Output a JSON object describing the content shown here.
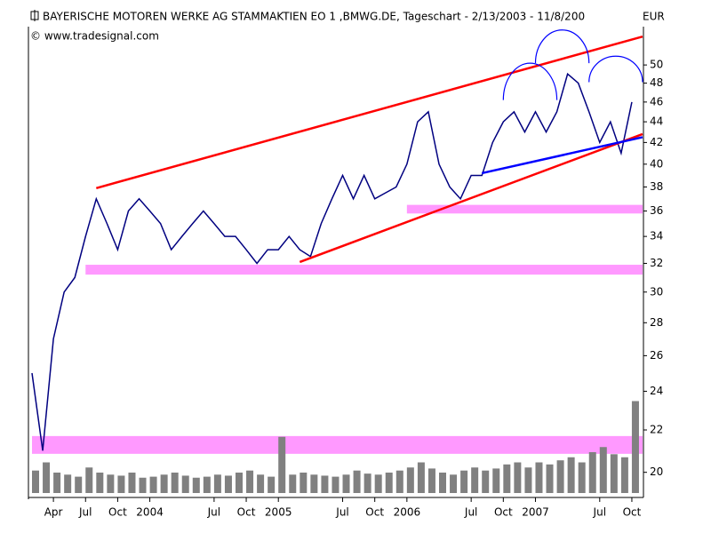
{
  "chart_data": {
    "type": "line",
    "title": "BAYERISCHE MOTOREN WERKE AG STAMMAKTIEN EO 1 ,BMWG.DE, Tageschart - 2/13/2003 - 11/8/200",
    "currency": "EUR",
    "subtitle": "© www.tradesignal.com",
    "log_scale": true,
    "x": [
      "2003-02",
      "2003-03",
      "2003-04",
      "2003-05",
      "2003-06",
      "2003-07",
      "2003-08",
      "2003-09",
      "2003-10",
      "2003-11",
      "2003-12",
      "2004-01",
      "2004-02",
      "2004-03",
      "2004-04",
      "2004-05",
      "2004-06",
      "2004-07",
      "2004-08",
      "2004-09",
      "2004-10",
      "2004-11",
      "2004-12",
      "2005-01",
      "2005-02",
      "2005-03",
      "2005-04",
      "2005-05",
      "2005-06",
      "2005-07",
      "2005-08",
      "2005-09",
      "2005-10",
      "2005-11",
      "2005-12",
      "2006-01",
      "2006-02",
      "2006-03",
      "2006-04",
      "2006-05",
      "2006-06",
      "2006-07",
      "2006-08",
      "2006-09",
      "2006-10",
      "2006-11",
      "2006-12",
      "2007-01",
      "2007-02",
      "2007-03",
      "2007-04",
      "2007-05",
      "2007-06",
      "2007-07",
      "2007-08",
      "2007-09",
      "2007-10"
    ],
    "series": [
      {
        "color": "#000080",
        "values": [
          25,
          21,
          27,
          30,
          31,
          34,
          37,
          35,
          33,
          36,
          37,
          36,
          35,
          33,
          34,
          35,
          36,
          35,
          34,
          34,
          33,
          32,
          33,
          33,
          34,
          33,
          32.5,
          35,
          37,
          39,
          37,
          39,
          37,
          37.5,
          38,
          40,
          44,
          45,
          40,
          38,
          37,
          39,
          39,
          42,
          44,
          45,
          43,
          45,
          43,
          45,
          49,
          48,
          45,
          42,
          44,
          41,
          46
        ]
      },
      {
        "color": "#808080",
        "axis": "y2",
        "type": "bar",
        "values": [
          22,
          30,
          20,
          18,
          16,
          25,
          20,
          18,
          17,
          20,
          15,
          16,
          18,
          20,
          17,
          15,
          16,
          18,
          17,
          20,
          22,
          18,
          16,
          55,
          18,
          20,
          18,
          17,
          16,
          18,
          22,
          19,
          18,
          20,
          22,
          25,
          30,
          24,
          20,
          18,
          22,
          25,
          22,
          24,
          28,
          30,
          25,
          30,
          28,
          32,
          35,
          30,
          40,
          45,
          38,
          35,
          90
        ]
      }
    ],
    "xlim": [
      "2003-02",
      "2007-11"
    ],
    "xticks": [
      {
        "value": "2003-04",
        "label": "Apr"
      },
      {
        "value": "2003-07",
        "label": "Jul"
      },
      {
        "value": "2003-10",
        "label": "Oct"
      },
      {
        "value": "2004-01",
        "label": "2004"
      },
      {
        "value": "2004-07",
        "label": "Jul"
      },
      {
        "value": "2004-10",
        "label": "Oct"
      },
      {
        "value": "2005-01",
        "label": "2005"
      },
      {
        "value": "2005-07",
        "label": "Jul"
      },
      {
        "value": "2005-10",
        "label": "Oct"
      },
      {
        "value": "2006-01",
        "label": "2006"
      },
      {
        "value": "2006-07",
        "label": "Jul"
      },
      {
        "value": "2006-10",
        "label": "Oct"
      },
      {
        "value": "2007-01",
        "label": "2007"
      },
      {
        "value": "2007-07",
        "label": "Jul"
      },
      {
        "value": "2007-10",
        "label": "Oct"
      }
    ],
    "ylim": [
      18.9,
      54.5
    ],
    "yticks": [
      20,
      22,
      24,
      26,
      28,
      30,
      32,
      34,
      36,
      38,
      40,
      42,
      44,
      46,
      48,
      50
    ],
    "y2lim": [
      0,
      100
    ],
    "bands": [
      {
        "color": "#ff99ff",
        "x": [
          "2003-07",
          "2007-11"
        ],
        "y": [
          31.2,
          31.9
        ]
      },
      {
        "color": "#ff99ff",
        "x": [
          "2006-01",
          "2007-11"
        ],
        "y": [
          35.8,
          36.5
        ]
      },
      {
        "color": "#ff99ff",
        "x": [
          "2003-02",
          "2007-11"
        ],
        "y": [
          20.85,
          21.7
        ]
      }
    ],
    "trendlines": [
      {
        "color": "#ff0000",
        "x": [
          "2003-08",
          "2007-11"
        ],
        "y": [
          37.9,
          53.3
        ]
      },
      {
        "color": "#ff0000",
        "x": [
          "2005-03",
          "2007-11"
        ],
        "y": [
          32.1,
          42.8
        ]
      },
      {
        "color": "#0000ff",
        "x": [
          "2006-08",
          "2007-11"
        ],
        "y": [
          39.2,
          42.5
        ]
      }
    ],
    "arcs": [
      {
        "color": "#0000ff",
        "x": [
          "2006-10",
          "2007-03"
        ],
        "y": [
          46.2,
          50.2
        ]
      },
      {
        "color": "#0000ff",
        "x": [
          "2007-01",
          "2007-06"
        ],
        "y": [
          50.2,
          54.1
        ]
      },
      {
        "color": "#0000ff",
        "x": [
          "2007-06",
          "2007-11"
        ],
        "y": [
          48.1,
          51.0
        ]
      }
    ]
  }
}
